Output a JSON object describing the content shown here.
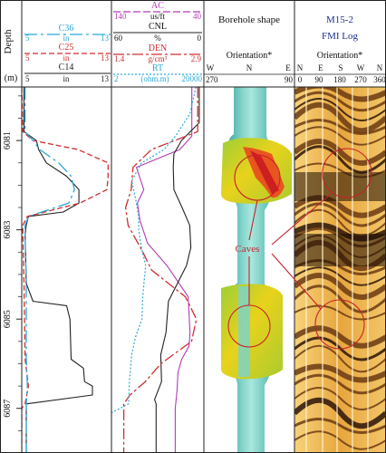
{
  "depth_track": {
    "title": "Depth",
    "unit": "(m)",
    "ticks": [
      "6081",
      "6083",
      "6085",
      "6087"
    ]
  },
  "caliper_track": {
    "curves": [
      {
        "name": "C36",
        "left": "5",
        "unit": "in",
        "right": "13",
        "color": "#2aa9d6"
      },
      {
        "name": "C25",
        "left": "5",
        "unit": "in",
        "right": "13",
        "color": "#cf2f2f"
      },
      {
        "name": "C14",
        "left": "5",
        "unit": "in",
        "right": "13",
        "color": "#222222"
      }
    ]
  },
  "log_track": {
    "curves": [
      {
        "name": "AC",
        "left": "140",
        "unit": "us/ft",
        "right": "40",
        "color": "#b23ab8"
      },
      {
        "name": "CNL",
        "left": "60",
        "unit": "%",
        "right": "0",
        "color": "#222222"
      },
      {
        "name": "DEN",
        "left": "1.4",
        "unit": "g/cm³",
        "right": "2.9",
        "color": "#cf2f2f"
      },
      {
        "name": "RT",
        "left": "2",
        "unit": "(ohm.m)",
        "right": "20000",
        "color": "#2aa9d6"
      }
    ]
  },
  "borehole_track": {
    "title": "Borehole shape",
    "subtitle": "Orientation*",
    "scale": {
      "left_num": "270",
      "left_dir": "W",
      "mid_dir": "N",
      "right_dir": "E",
      "right_num": "90"
    }
  },
  "fmi_track": {
    "title": "M15-2",
    "subtitle": "FMI Log",
    "orientation_title": "Orientation*",
    "dirs": [
      "N",
      "E",
      "S",
      "W",
      "N"
    ],
    "angles": [
      "0",
      "90",
      "180",
      "270",
      "360"
    ]
  },
  "annotation": {
    "label": "Caves",
    "color": "#c8202a"
  },
  "chart_data": {
    "type": "line",
    "depth_unit": "m",
    "depth_range": [
      6079.8,
      6088.0
    ],
    "depth_ticks": [
      6081,
      6083,
      6085,
      6087
    ],
    "tracks": [
      {
        "name": "caliper",
        "series": [
          {
            "name": "C14",
            "unit": "in",
            "scale": [
              5,
              13
            ],
            "depth": [
              6079.8,
              6080.8,
              6081.0,
              6081.2,
              6081.5,
              6081.8,
              6082.1,
              6082.4,
              6082.6,
              6082.7,
              6082.9,
              6083.1,
              6084.2,
              6084.6,
              6084.7,
              6085.0,
              6085.9,
              6086.1,
              6086.4,
              6086.5,
              6086.7,
              6086.9,
              6088.0
            ],
            "values": [
              5.2,
              5.2,
              6.3,
              6.5,
              7.2,
              9.0,
              10.1,
              10.1,
              8.7,
              5.6,
              5.4,
              5.3,
              5.4,
              6.0,
              9.0,
              9.3,
              9.4,
              10.5,
              10.6,
              11.3,
              11.3,
              5.4,
              5.4
            ]
          },
          {
            "name": "C25",
            "unit": "in",
            "scale": [
              5,
              13
            ],
            "depth": [
              6079.8,
              6080.8,
              6081.0,
              6081.2,
              6081.5,
              6081.8,
              6082.1,
              6082.4,
              6082.7,
              6082.9,
              6083.1,
              6084.2,
              6085.9,
              6086.5,
              6086.9,
              6087.0,
              6088.0
            ],
            "values": [
              5.0,
              5.1,
              6.0,
              10.0,
              12.7,
              12.7,
              12.6,
              10.2,
              5.5,
              5.1,
              5.1,
              5.2,
              5.3,
              5.6,
              5.3,
              5.0,
              5.0
            ]
          },
          {
            "name": "C36",
            "unit": "in",
            "scale": [
              5,
              13
            ],
            "depth": [
              6079.8,
              6080.8,
              6081.0,
              6081.2,
              6081.5,
              6081.8,
              6082.1,
              6082.4,
              6082.7,
              6082.9,
              6083.1,
              6084.2,
              6085.9,
              6086.5,
              6086.9,
              6088.0
            ],
            "values": [
              5.3,
              5.3,
              6.0,
              6.6,
              8.3,
              9.4,
              9.7,
              9.2,
              5.6,
              5.3,
              5.3,
              5.4,
              5.4,
              5.5,
              5.4,
              5.4
            ]
          }
        ]
      },
      {
        "name": "logs",
        "series": [
          {
            "name": "AC",
            "unit": "us/ft",
            "scale": [
              140,
              40
            ],
            "depth": [
              6079.8,
              6080.9,
              6081.2,
              6081.6,
              6082.1,
              6082.4,
              6082.8,
              6083.3,
              6083.8,
              6084.5,
              6084.9,
              6085.3,
              6085.6,
              6085.9,
              6086.2,
              6086.6,
              6087.0,
              6088.0
            ],
            "values": [
              53,
              53,
              66,
              113,
              105,
              112,
              109,
              101,
              80,
              57,
              56,
              55,
              56,
              64,
              68,
              69,
              71,
              71
            ]
          },
          {
            "name": "CNL",
            "unit": "%",
            "scale": [
              60,
              0
            ],
            "depth": [
              6079.8,
              6080.6,
              6081.0,
              6081.3,
              6081.6,
              6082.1,
              6082.5,
              6082.9,
              6083.4,
              6083.8,
              6084.6,
              6085.3,
              6085.8,
              6086.4,
              6086.8,
              6086.9,
              6088.0
            ],
            "values": [
              3.0,
              3.0,
              14.5,
              19.5,
              19.9,
              19.5,
              14.2,
              9.2,
              8.5,
              11.3,
              23.0,
              24.6,
              28.0,
              27.5,
              32.0,
              31.0,
              31.0
            ]
          },
          {
            "name": "DEN",
            "unit": "g/cm3",
            "scale": [
              1.4,
              2.9
            ],
            "depth": [
              6079.8,
              6080.8,
              6081.2,
              6081.6,
              6082.1,
              6082.5,
              6082.9,
              6083.5,
              6083.9,
              6084.5,
              6085.0,
              6085.5,
              6086.0,
              6086.4,
              6086.7,
              6086.9,
              6088.0
            ],
            "values": [
              2.8,
              2.8,
              2.05,
              1.75,
              1.72,
              1.63,
              1.67,
              1.91,
              2.05,
              2.6,
              2.78,
              2.7,
              2.2,
              1.95,
              1.7,
              1.6,
              1.6
            ]
          },
          {
            "name": "RT",
            "unit": "ohm.m",
            "scale": [
              2,
              20000
            ],
            "depth": [
              6079.8,
              6080.4,
              6080.7,
              6080.9,
              6081.2,
              6081.5,
              6081.9,
              6082.3,
              6082.7,
              6083.0,
              6083.4,
              6083.8,
              6084.5,
              6085.0,
              6085.4,
              6085.8,
              6086.4,
              6086.9,
              6087.1,
              6088.0
            ],
            "values": [
              9000,
              5000,
              2100,
              1200,
              380,
              40,
              15,
              22,
              30,
              30,
              40,
              60,
              45,
              42,
              22,
              15,
              12,
              11,
              2,
              2
            ],
            "scale_type": "log"
          }
        ]
      }
    ]
  }
}
